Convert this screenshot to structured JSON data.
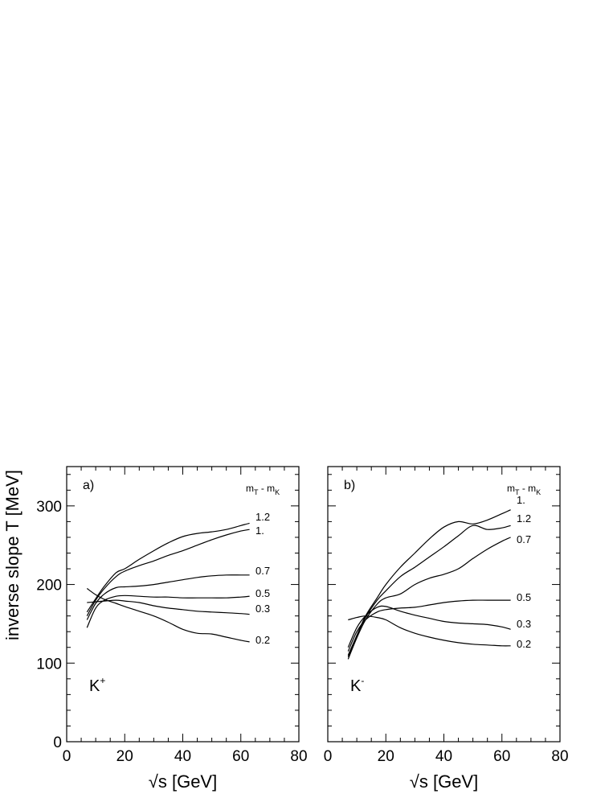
{
  "y_axis_title": "inverse slope T [MeV]",
  "chart_data": [
    {
      "type": "line",
      "panel_label": "a)",
      "particle": "K",
      "particle_charge": "+",
      "legend_header": "m_T - m_K",
      "xlabel": "√s [GeV]",
      "ylabel": "inverse slope T [MeV]",
      "xlim": [
        0,
        80
      ],
      "ylim": [
        0,
        350
      ],
      "x_ticks": [
        "0",
        "20",
        "40",
        "60",
        "80"
      ],
      "y_ticks": [
        "0",
        "100",
        "200",
        "300"
      ],
      "series": [
        {
          "name": "1.2",
          "x": [
            7,
            10,
            13,
            17,
            20,
            25,
            30,
            35,
            40,
            45,
            50,
            55,
            60,
            63
          ],
          "y": [
            165,
            182,
            198,
            215,
            220,
            232,
            243,
            253,
            261,
            265,
            267,
            270,
            275,
            278
          ]
        },
        {
          "name": "1.",
          "x": [
            7,
            10,
            13,
            17,
            20,
            25,
            30,
            35,
            40,
            45,
            50,
            55,
            60,
            63
          ],
          "y": [
            160,
            180,
            195,
            210,
            217,
            224,
            230,
            237,
            243,
            250,
            257,
            263,
            268,
            270
          ]
        },
        {
          "name": "0.7",
          "x": [
            7,
            10,
            13,
            17,
            20,
            25,
            30,
            35,
            40,
            45,
            50,
            55,
            60,
            63
          ],
          "y": [
            155,
            176,
            188,
            196,
            197,
            198,
            200,
            203,
            206,
            209,
            211,
            212,
            212,
            212
          ]
        },
        {
          "name": "0.5",
          "x": [
            7,
            10,
            13,
            17,
            20,
            25,
            30,
            35,
            40,
            45,
            50,
            55,
            60,
            63
          ],
          "y": [
            145,
            170,
            180,
            185,
            186,
            185,
            184,
            184,
            183,
            183,
            183,
            183,
            184,
            185
          ]
        },
        {
          "name": "0.3",
          "x": [
            7,
            10,
            13,
            17,
            20,
            25,
            30,
            35,
            40,
            45,
            50,
            55,
            60,
            63
          ],
          "y": [
            177,
            178,
            179,
            180,
            179,
            177,
            173,
            170,
            168,
            166,
            165,
            164,
            163,
            162
          ]
        },
        {
          "name": "0.2",
          "x": [
            7,
            10,
            13,
            17,
            20,
            25,
            30,
            35,
            40,
            45,
            50,
            55,
            60,
            63
          ],
          "y": [
            195,
            187,
            181,
            176,
            172,
            166,
            160,
            152,
            143,
            138,
            137,
            133,
            129,
            127
          ]
        }
      ]
    },
    {
      "type": "line",
      "panel_label": "b)",
      "particle": "K",
      "particle_charge": "-",
      "legend_header": "m_T - m_K",
      "xlabel": "√s [GeV]",
      "ylabel": "",
      "xlim": [
        0,
        80
      ],
      "ylim": [
        0,
        350
      ],
      "x_ticks": [
        "0",
        "20",
        "40",
        "60",
        "80"
      ],
      "y_ticks": [],
      "series": [
        {
          "name": "1.",
          "x": [
            7,
            10,
            13,
            17,
            20,
            25,
            30,
            35,
            40,
            45,
            50,
            55,
            60,
            63
          ],
          "y": [
            110,
            135,
            160,
            183,
            200,
            222,
            240,
            258,
            273,
            280,
            277,
            282,
            290,
            295
          ]
        },
        {
          "name": "1.2",
          "x": [
            7,
            10,
            13,
            17,
            20,
            25,
            30,
            35,
            40,
            45,
            50,
            55,
            60,
            63
          ],
          "y": [
            108,
            135,
            158,
            180,
            192,
            210,
            222,
            235,
            248,
            262,
            275,
            270,
            272,
            275
          ]
        },
        {
          "name": "0.7",
          "x": [
            7,
            10,
            13,
            17,
            20,
            25,
            30,
            35,
            40,
            45,
            50,
            55,
            60,
            63
          ],
          "y": [
            105,
            132,
            155,
            175,
            183,
            188,
            200,
            208,
            213,
            220,
            233,
            245,
            255,
            260
          ]
        },
        {
          "name": "0.5",
          "x": [
            7,
            10,
            13,
            17,
            20,
            25,
            30,
            35,
            40,
            45,
            50,
            55,
            60,
            63
          ],
          "y": [
            115,
            140,
            155,
            165,
            168,
            170,
            171,
            174,
            177,
            179,
            180,
            180,
            180,
            180
          ]
        },
        {
          "name": "0.3",
          "x": [
            7,
            10,
            13,
            17,
            20,
            25,
            30,
            35,
            40,
            45,
            50,
            55,
            60,
            63
          ],
          "y": [
            120,
            145,
            160,
            171,
            172,
            166,
            161,
            157,
            153,
            151,
            150,
            149,
            146,
            143
          ]
        },
        {
          "name": "0.2",
          "x": [
            7,
            10,
            13,
            17,
            20,
            25,
            30,
            35,
            40,
            45,
            50,
            55,
            60,
            63
          ],
          "y": [
            155,
            158,
            160,
            158,
            155,
            145,
            138,
            133,
            129,
            126,
            124,
            123,
            122,
            122
          ]
        }
      ]
    }
  ]
}
